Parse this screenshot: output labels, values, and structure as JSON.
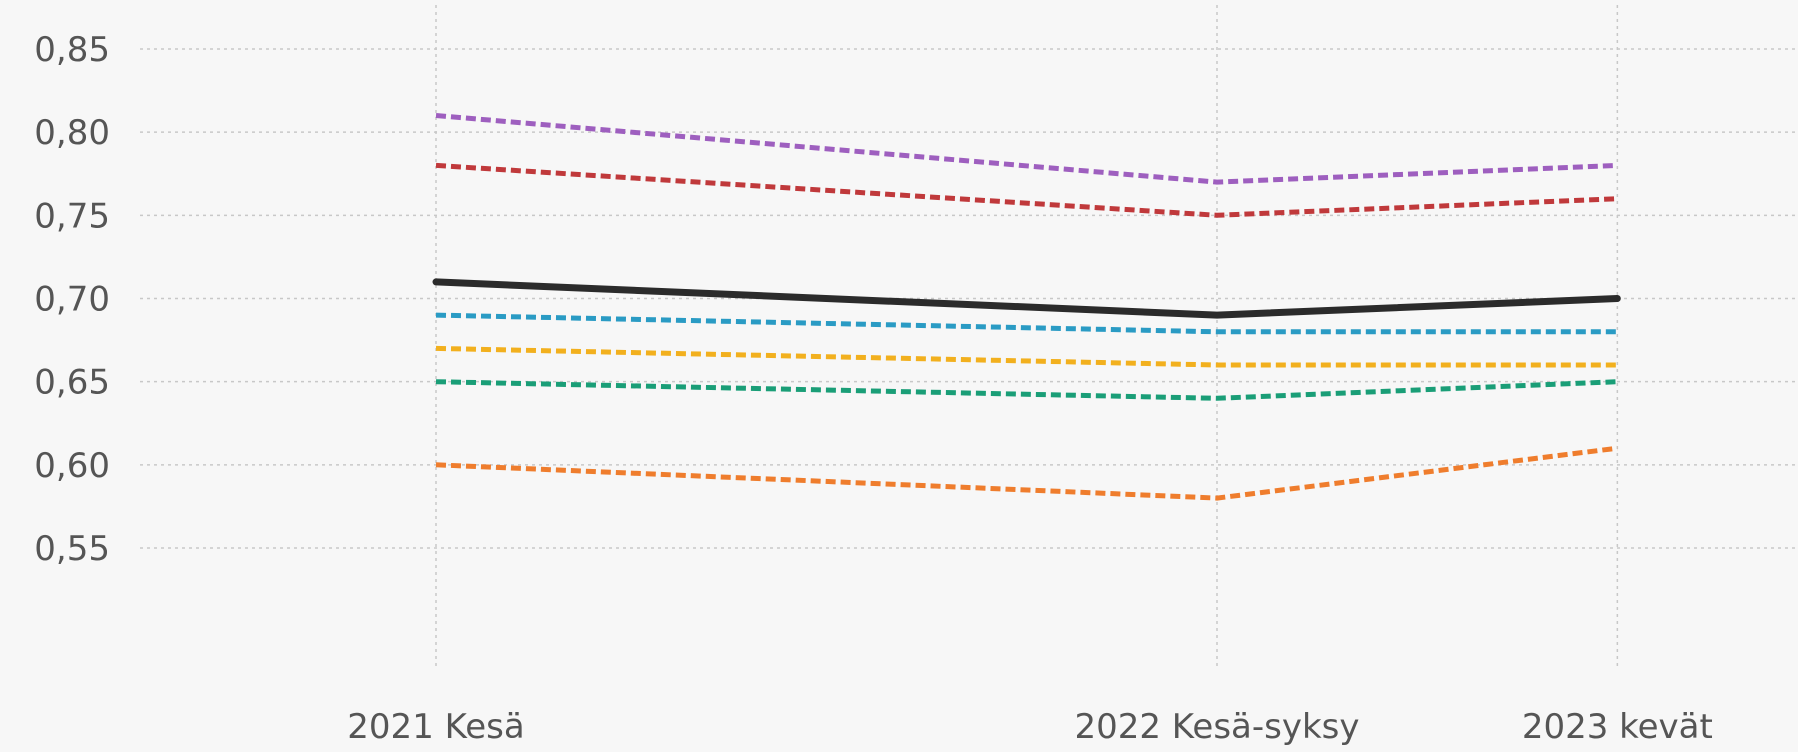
{
  "chart_data": {
    "type": "line",
    "categories": [
      "2021 Kesä",
      "2022 Kesä-syksy",
      "2023 kevät"
    ],
    "x_positions": [
      2021.56,
      2022.75,
      2023.36
    ],
    "ylim": [
      0.53,
      0.87
    ],
    "yticks": [
      "0,85",
      "0,80",
      "0,75",
      "0,70",
      "0,65",
      "0,60",
      "0,55"
    ],
    "ytick_values": [
      0.85,
      0.8,
      0.75,
      0.7,
      0.65,
      0.6,
      0.55
    ],
    "grid": true,
    "series": [
      {
        "color": "#9e5fbf",
        "dashed": true,
        "values": [
          0.81,
          0.77,
          0.78
        ]
      },
      {
        "color": "#c0393b",
        "dashed": true,
        "values": [
          0.78,
          0.75,
          0.76
        ]
      },
      {
        "color": "#2b2b2b",
        "dashed": false,
        "values": [
          0.71,
          0.69,
          0.7
        ]
      },
      {
        "color": "#2a9bc4",
        "dashed": true,
        "values": [
          0.69,
          0.68,
          0.68
        ]
      },
      {
        "color": "#f2b01e",
        "dashed": true,
        "values": [
          0.67,
          0.66,
          0.66
        ]
      },
      {
        "color": "#1a9e77",
        "dashed": true,
        "values": [
          0.65,
          0.64,
          0.65
        ]
      },
      {
        "color": "#ef7d2d",
        "dashed": true,
        "values": [
          0.6,
          0.58,
          0.61
        ]
      }
    ]
  }
}
